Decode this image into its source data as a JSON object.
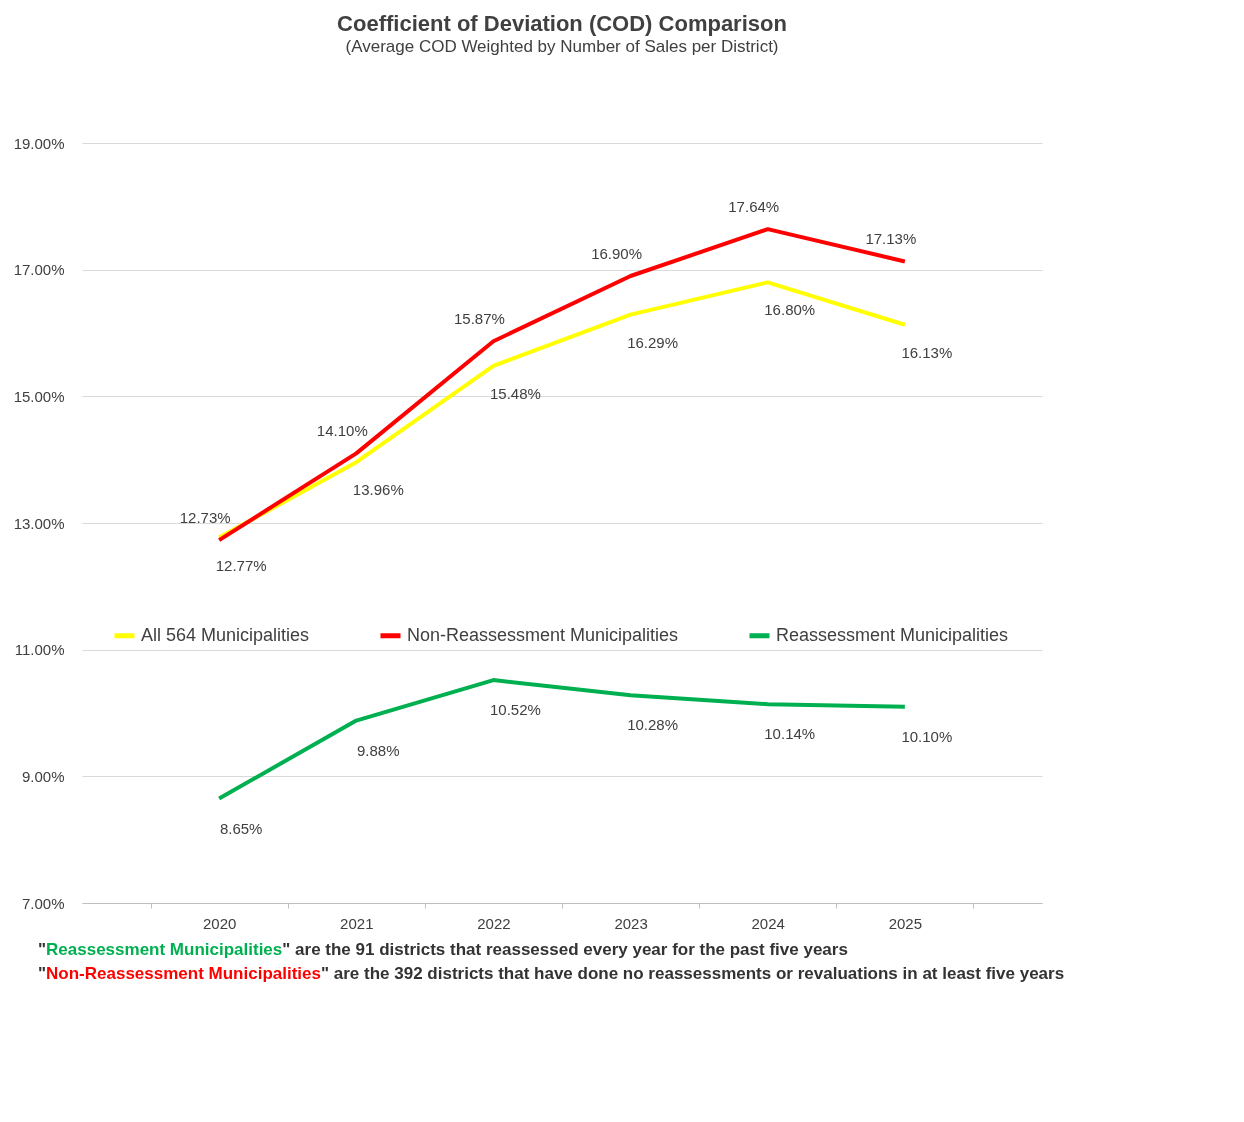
{
  "chart_data": {
    "type": "line",
    "title": "Coefficient of Deviation (COD) Comparison",
    "subtitle": "(Average COD Weighted by Number of Sales per District)",
    "categories": [
      "2020",
      "2021",
      "2022",
      "2023",
      "2024",
      "2025"
    ],
    "series": [
      {
        "name": "All 564 Municipalities",
        "color": "#ffff00",
        "values": [
          12.77,
          13.96,
          15.48,
          16.29,
          16.8,
          16.13
        ],
        "value_labels": [
          "12.77%",
          "13.96%",
          "15.48%",
          "16.29%",
          "16.80%",
          "16.13%"
        ]
      },
      {
        "name": "Non-Reassessment Municipalities",
        "color": "#ff0000",
        "values": [
          12.73,
          14.1,
          15.87,
          16.9,
          17.64,
          17.13
        ],
        "value_labels": [
          "12.73%",
          "14.10%",
          "15.87%",
          "16.90%",
          "17.64%",
          "17.13%"
        ]
      },
      {
        "name": "Reassessment Municipalities",
        "color": "#00b050",
        "values": [
          8.65,
          9.88,
          10.52,
          10.28,
          10.14,
          10.1
        ],
        "value_labels": [
          "8.65%",
          "9.88%",
          "10.52%",
          "10.28%",
          "10.14%",
          "10.10%"
        ]
      }
    ],
    "ylim": [
      7,
      19
    ],
    "yticks": [
      {
        "value": 7,
        "label": "7.00%"
      },
      {
        "value": 9,
        "label": "9.00%"
      },
      {
        "value": 11,
        "label": "11.00%"
      },
      {
        "value": 13,
        "label": "13.00%"
      },
      {
        "value": 15,
        "label": "15.00%"
      },
      {
        "value": 17,
        "label": "17.00%"
      },
      {
        "value": 19,
        "label": "19.00%"
      }
    ],
    "grid": "y",
    "legend": "center",
    "marker": "none",
    "line_style": "solid",
    "annotations": [
      "\"Reassessment Municipalities\" are the 91 districts that reassessed every year for the past five years",
      "\"Non-Reassessment Municipalities\" are the 392 districts that have done no reassessments or revaluations in at least five years"
    ]
  }
}
